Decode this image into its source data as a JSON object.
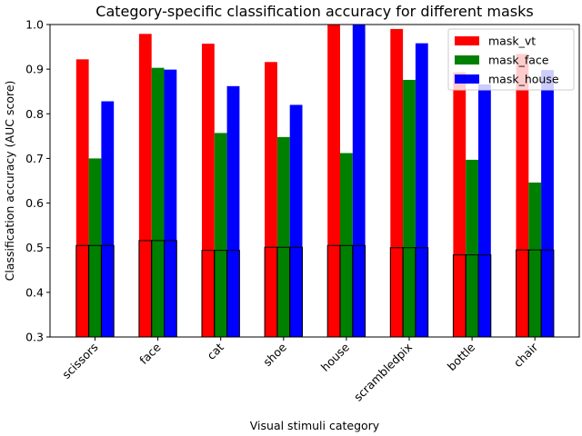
{
  "chart_data": {
    "type": "bar",
    "title": "Category-specific classification accuracy for different masks",
    "xlabel": "Visual stimuli category",
    "ylabel": "Classification accuracy (AUC score)",
    "ylim": [
      0.3,
      1.0
    ],
    "yticks": [
      "0.3",
      "0.4",
      "0.5",
      "0.6",
      "0.7",
      "0.8",
      "0.9",
      "1.0"
    ],
    "categories": [
      "scissors",
      "face",
      "cat",
      "shoe",
      "house",
      "scrambledpix",
      "bottle",
      "chair"
    ],
    "series": [
      {
        "name": "mask_vt",
        "color": "#ff0000",
        "values": [
          0.922,
          0.979,
          0.957,
          0.916,
          1.0,
          0.99,
          0.893,
          0.934
        ]
      },
      {
        "name": "mask_face",
        "color": "#008000",
        "values": [
          0.7,
          0.903,
          0.757,
          0.748,
          0.712,
          0.876,
          0.697,
          0.646
        ]
      },
      {
        "name": "mask_house",
        "color": "#0000ff",
        "values": [
          0.828,
          0.899,
          0.862,
          0.82,
          1.0,
          0.958,
          0.866,
          0.898
        ]
      }
    ],
    "chance_series": [
      {
        "name": "mask_vt",
        "values": [
          0.505,
          0.516,
          0.494,
          0.501,
          0.505,
          0.5,
          0.484,
          0.495
        ]
      },
      {
        "name": "mask_face",
        "values": [
          0.505,
          0.516,
          0.494,
          0.501,
          0.505,
          0.5,
          0.484,
          0.495
        ]
      },
      {
        "name": "mask_house",
        "values": [
          0.505,
          0.516,
          0.494,
          0.501,
          0.505,
          0.5,
          0.484,
          0.495
        ]
      }
    ],
    "legend_position": "top-right",
    "grid": false
  }
}
